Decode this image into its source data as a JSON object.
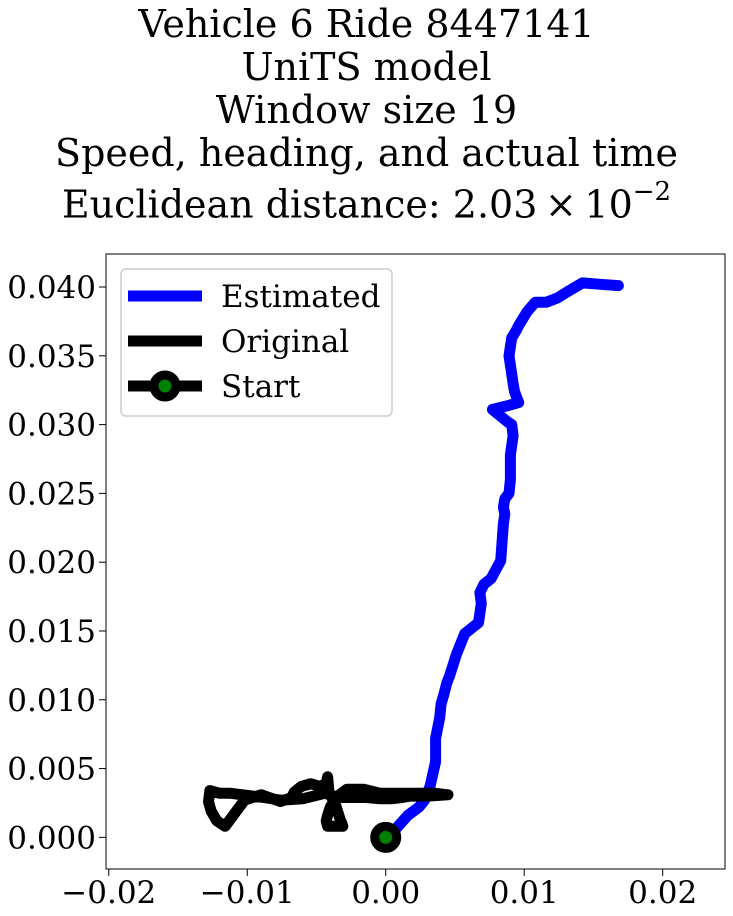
{
  "title": {
    "lines": [
      "Vehicle 6 Ride 8447141",
      "UniTS model",
      "Window size 19",
      "Speed, heading, and actual time"
    ],
    "distance_prefix": "Euclidean distance: 2.03",
    "distance_times": "×",
    "distance_base": "10",
    "distance_exponent": "−2"
  },
  "chart_data": {
    "type": "line",
    "xlim": [
      -0.0202,
      0.0245
    ],
    "ylim": [
      -0.0023,
      0.0424
    ],
    "xticks": [
      -0.02,
      -0.01,
      0.0,
      0.01,
      0.02
    ],
    "xtick_labels": [
      "−0.02",
      "−0.01",
      "0.00",
      "0.01",
      "0.02"
    ],
    "yticks": [
      0.0,
      0.005,
      0.01,
      0.015,
      0.02,
      0.025,
      0.03,
      0.035,
      0.04
    ],
    "ytick_labels": [
      "0.000",
      "0.005",
      "0.010",
      "0.015",
      "0.020",
      "0.025",
      "0.030",
      "0.035",
      "0.040"
    ],
    "grid": false,
    "legend_position": "top-left",
    "legend": [
      "Estimated",
      "Original",
      "Start"
    ],
    "series": [
      {
        "name": "Estimated",
        "color": "#0000ff",
        "x": [
          0.0,
          0.0008,
          0.0016,
          0.0024,
          0.0028,
          0.0032,
          0.0034,
          0.0036,
          0.0036,
          0.0039,
          0.004,
          0.0042,
          0.0044,
          0.0046,
          0.0051,
          0.0057,
          0.0062,
          0.0067,
          0.0069,
          0.0068,
          0.0071,
          0.0076,
          0.0083,
          0.0085,
          0.0086,
          0.0085,
          0.0086,
          0.0089,
          0.009,
          0.009,
          0.0092,
          0.0091,
          0.0088,
          0.0077,
          0.0089,
          0.0096,
          0.0093,
          0.0092,
          0.0089,
          0.0091,
          0.0094,
          0.0096,
          0.0102,
          0.0108,
          0.0116,
          0.0124,
          0.0132,
          0.0142,
          0.0155,
          0.0168
        ],
        "y": [
          0.0,
          0.0007,
          0.0016,
          0.0022,
          0.0027,
          0.0037,
          0.0046,
          0.0055,
          0.0072,
          0.0087,
          0.0097,
          0.0104,
          0.0112,
          0.0117,
          0.0133,
          0.0148,
          0.0152,
          0.0156,
          0.017,
          0.0178,
          0.0184,
          0.0188,
          0.0201,
          0.0228,
          0.0235,
          0.024,
          0.0246,
          0.025,
          0.026,
          0.0278,
          0.0292,
          0.03,
          0.0302,
          0.0311,
          0.0314,
          0.0316,
          0.0324,
          0.033,
          0.035,
          0.0363,
          0.0368,
          0.0372,
          0.0382,
          0.0389,
          0.0389,
          0.0392,
          0.0397,
          0.0403,
          0.0402,
          0.0401
        ]
      },
      {
        "name": "Original",
        "color": "#000000",
        "x": [
          0.0045,
          0.003,
          0.0018,
          0.0012,
          0.0004,
          -0.0004,
          -0.0014,
          -0.0024,
          -0.0034,
          -0.0044,
          -0.006,
          -0.0076,
          -0.0088,
          -0.0096,
          -0.0104,
          -0.0112,
          -0.012,
          -0.0127,
          -0.0128,
          -0.0126,
          -0.0122,
          -0.0116,
          -0.0102,
          -0.009,
          -0.0076,
          -0.0068,
          -0.0066,
          -0.0061,
          -0.0054,
          -0.0048,
          -0.0043,
          -0.0042,
          -0.0041,
          -0.0036,
          -0.0032,
          -0.0032,
          -0.0031,
          -0.0036,
          -0.0042,
          -0.0043,
          -0.0042,
          -0.004,
          -0.0036,
          -0.0028,
          -0.0016,
          -0.0004,
          0.001,
          0.0024,
          0.0036,
          0.0044
        ],
        "y": [
          0.0031,
          0.003,
          0.003,
          0.0029,
          0.0028,
          0.0028,
          0.0029,
          0.0029,
          0.0029,
          0.0032,
          0.0028,
          0.0027,
          0.0029,
          0.003,
          0.0031,
          0.0032,
          0.0032,
          0.0034,
          0.0026,
          0.0019,
          0.0012,
          0.0008,
          0.0027,
          0.0031,
          0.0026,
          0.0029,
          0.0033,
          0.0037,
          0.0039,
          0.0037,
          0.0039,
          0.0044,
          0.0033,
          0.0023,
          0.001,
          0.0011,
          0.0008,
          0.0008,
          0.0008,
          0.0012,
          0.0016,
          0.0022,
          0.0029,
          0.0035,
          0.0035,
          0.0032,
          0.0032,
          0.0032,
          0.0032,
          0.0031
        ]
      },
      {
        "name": "Start",
        "color": "#000000",
        "marker_face": "#008000",
        "x": [
          0.0
        ],
        "y": [
          0.0
        ]
      }
    ]
  }
}
